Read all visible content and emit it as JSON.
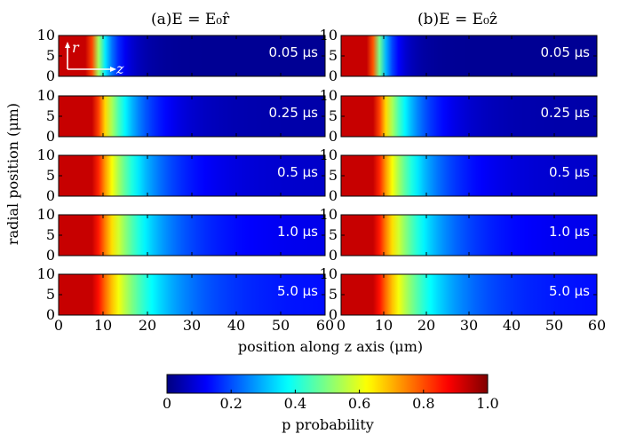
{
  "chart_data": {
    "type": "heatmap",
    "panels_title": {
      "left": "(a)E = E₀r̂",
      "right": "(b)E = E₀ẑ"
    },
    "xlabel": "position along z axis (μm)",
    "ylabel": "radial position (μm)",
    "x_ticks": [
      "0",
      "10",
      "20",
      "30",
      "40",
      "50",
      "60"
    ],
    "y_ticks": [
      "0",
      "5",
      "10"
    ],
    "xlim": [
      0,
      60
    ],
    "ylim": [
      0,
      10
    ],
    "times": [
      "0.05 μs",
      "0.25 μs",
      "0.5 μs",
      "1.0 μs",
      "5.0 μs"
    ],
    "inset_axes": {
      "r": "r",
      "z": "z"
    },
    "colorbar": {
      "label": "p probability",
      "ticks": [
        "0",
        "0.2",
        "0.4",
        "0.6",
        "0.8",
        "1.0"
      ],
      "range": [
        0,
        1
      ],
      "colormap": "jet"
    },
    "profiles": {
      "left": [
        {
          "time": "0.05 μs",
          "plateau_end": 7,
          "decay_len": 3.5,
          "floor": 0.02
        },
        {
          "time": "0.25 μs",
          "plateau_end": 8,
          "decay_len": 7,
          "floor": 0.04
        },
        {
          "time": "0.5 μs",
          "plateau_end": 8,
          "decay_len": 9,
          "floor": 0.07
        },
        {
          "time": "1.0 μs",
          "plateau_end": 8,
          "decay_len": 10,
          "floor": 0.1
        },
        {
          "time": "5.0 μs",
          "plateau_end": 8,
          "decay_len": 11,
          "floor": 0.13
        }
      ],
      "right": [
        {
          "time": "0.05 μs",
          "plateau_end": 7,
          "decay_len": 3,
          "floor": 0.02
        },
        {
          "time": "0.25 μs",
          "plateau_end": 8,
          "decay_len": 7,
          "floor": 0.04
        },
        {
          "time": "0.5 μs",
          "plateau_end": 8,
          "decay_len": 9,
          "floor": 0.07
        },
        {
          "time": "1.0 μs",
          "plateau_end": 8,
          "decay_len": 10,
          "floor": 0.1
        },
        {
          "time": "5.0 μs",
          "plateau_end": 8,
          "decay_len": 11,
          "floor": 0.13
        }
      ]
    }
  }
}
